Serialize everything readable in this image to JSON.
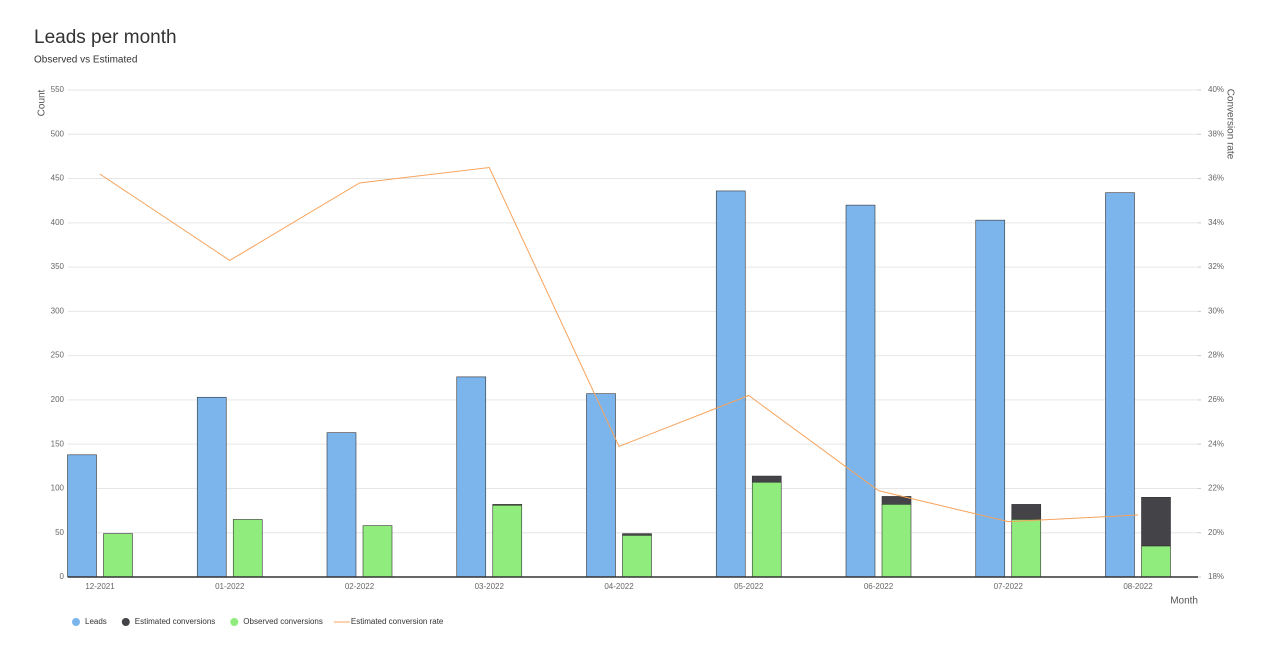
{
  "chart_data": {
    "type": "bar",
    "title": "Leads per month",
    "subtitle": "Observed vs Estimated",
    "x_label": "Month",
    "y_label": "Count",
    "y2_label": "Conversion rate",
    "categories": [
      "12-2021",
      "01-2022",
      "02-2022",
      "03-2022",
      "04-2022",
      "05-2022",
      "06-2022",
      "07-2022",
      "08-2022"
    ],
    "series": [
      {
        "name": "Leads",
        "type": "bar",
        "color": "#7cb5ec",
        "values": [
          138,
          203,
          163,
          226,
          207,
          436,
          420,
          403,
          434
        ]
      },
      {
        "name": "Estimated conversions",
        "type": "bar",
        "color": "#434348",
        "stacked_on": "Observed conversions",
        "values": [
          0,
          0,
          0,
          1,
          2,
          7,
          9,
          17,
          55
        ]
      },
      {
        "name": "Observed conversions",
        "type": "bar",
        "color": "#90ed7d",
        "values": [
          49,
          65,
          58,
          81,
          47,
          107,
          82,
          65,
          35
        ]
      },
      {
        "name": "Estimated conversion rate",
        "type": "line",
        "axis": "y2",
        "color": "#f7a35c",
        "values": [
          36.2,
          32.3,
          35.8,
          36.5,
          23.9,
          26.2,
          21.9,
          20.5,
          20.8
        ]
      }
    ],
    "ylim": [
      0,
      550
    ],
    "yticks": [
      0,
      50,
      100,
      150,
      200,
      250,
      300,
      350,
      400,
      450,
      500,
      550
    ],
    "y2lim": [
      18,
      40
    ],
    "y2ticks": [
      {
        "value": 18,
        "label": "18%"
      },
      {
        "value": 20,
        "label": "20%"
      },
      {
        "value": 22,
        "label": "22%"
      },
      {
        "value": 24,
        "label": "24%"
      },
      {
        "value": 26,
        "label": "26%"
      },
      {
        "value": 28,
        "label": "28%"
      },
      {
        "value": 30,
        "label": "30%"
      },
      {
        "value": 32,
        "label": "32%"
      },
      {
        "value": 34,
        "label": "34%"
      },
      {
        "value": 36,
        "label": "36%"
      },
      {
        "value": 38,
        "label": "38%"
      },
      {
        "value": 40,
        "label": "40%"
      }
    ],
    "grid": true,
    "legend": "bottom-left"
  }
}
